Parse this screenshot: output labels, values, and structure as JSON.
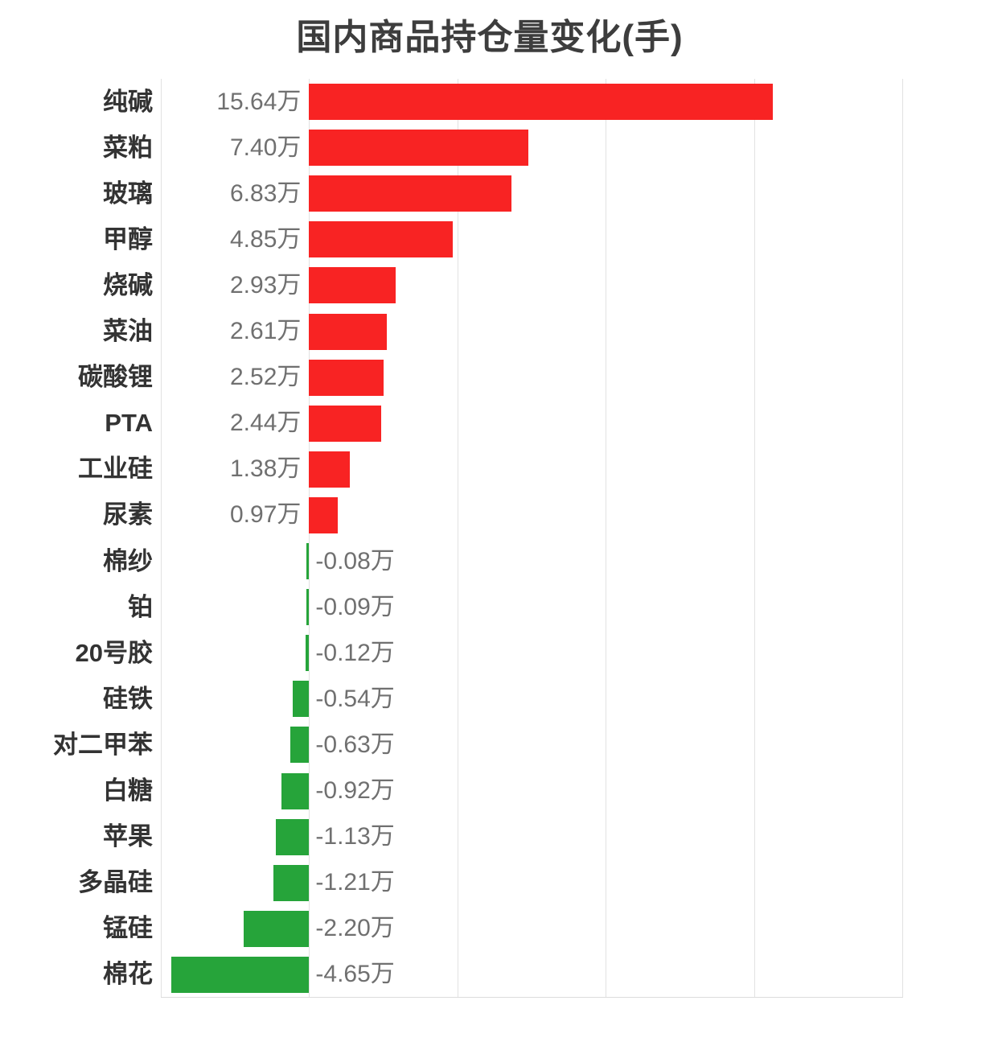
{
  "title": "国内商品持仓量变化(手)",
  "colors": {
    "positive_bar": "#f82323",
    "negative_bar": "#26a43a",
    "gridline": "#e2e2e2",
    "axis_line": "#dcdcdc",
    "title_text": "#3d3d3d",
    "category_text": "#333333",
    "value_text": "#707070",
    "background": "#ffffff"
  },
  "chart_data": {
    "type": "bar",
    "orientation": "horizontal",
    "title": "国内商品持仓量变化(手)",
    "unit": "万手",
    "value_suffix": "万",
    "categories": [
      "纯碱",
      "菜粕",
      "玻璃",
      "甲醇",
      "烧碱",
      "菜油",
      "碳酸锂",
      "PTA",
      "工业硅",
      "尿素",
      "棉纱",
      "铂",
      "20号胶",
      "硅铁",
      "对二甲苯",
      "白糖",
      "苹果",
      "多晶硅",
      "锰硅",
      "棉花"
    ],
    "values": [
      15.64,
      7.4,
      6.83,
      4.85,
      2.93,
      2.61,
      2.52,
      2.44,
      1.38,
      0.97,
      -0.08,
      -0.09,
      -0.12,
      -0.54,
      -0.63,
      -0.92,
      -1.13,
      -1.21,
      -2.2,
      -4.65
    ],
    "value_labels": [
      "15.64万",
      "7.40万",
      "6.83万",
      "4.85万",
      "2.93万",
      "2.61万",
      "2.52万",
      "2.44万",
      "1.38万",
      "0.97万",
      "-0.08万",
      "-0.09万",
      "-0.12万",
      "-0.54万",
      "-0.63万",
      "-0.92万",
      "-1.13万",
      "-1.21万",
      "-2.20万",
      "-4.65万"
    ],
    "xlim": [
      -5,
      20
    ],
    "x_gridlines": [
      -5,
      0,
      5,
      10,
      15,
      20
    ],
    "grid": true,
    "legend": false,
    "bar_color_rule": "positive=red, negative=green",
    "value_label_position": "opposite side of zero line"
  }
}
